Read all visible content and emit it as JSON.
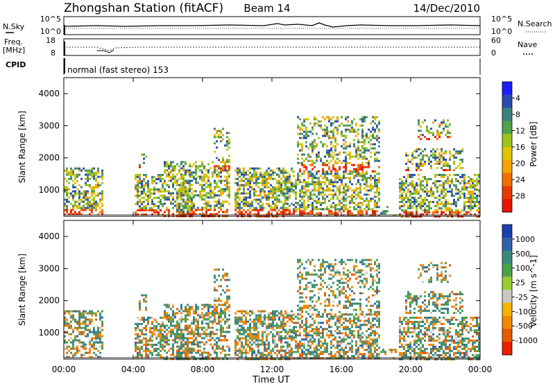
{
  "header": {
    "title": "Zhongshan Station (fitACF)",
    "beam": "Beam 14",
    "date": "14/Dec/2010"
  },
  "noise_panel": {
    "left_label": "N.Sky",
    "right_label": "N.Search",
    "left_ticks": [
      "10^5",
      "10^0"
    ],
    "right_ticks": [
      "10^5",
      "10^0"
    ]
  },
  "freq_panel": {
    "left_label_1": "Freq.",
    "left_label_2": "[MHz]",
    "right_label": "Nave",
    "left_ticks": [
      "18",
      "8"
    ],
    "right_ticks": [
      "60",
      "0"
    ]
  },
  "cpid_panel": {
    "label": "CPID",
    "mode": "normal (fast stereo) 153"
  },
  "chart_data": [
    {
      "type": "heatmap",
      "name": "power",
      "ylabel": "Slant Range [km]",
      "ylim": [
        180,
        4500
      ],
      "y_ticks": [
        "1000",
        "2000",
        "3000",
        "4000"
      ],
      "colorbar_label": "Power [dB]",
      "colorbar_ticks": [
        "4",
        "8",
        "12",
        "16",
        "20",
        "24",
        "28"
      ],
      "colorbar_colors": [
        "#1d1dff",
        "#2a4dad",
        "#3d7f7f",
        "#4ea34b",
        "#9cc51e",
        "#e2c400",
        "#f5a400",
        "#f07000",
        "#e83a00",
        "#e81500"
      ]
    },
    {
      "type": "heatmap",
      "name": "velocity",
      "ylabel": "Slant Range [km]",
      "ylim": [
        180,
        4500
      ],
      "y_ticks": [
        "1000",
        "2000",
        "3000",
        "4000"
      ],
      "colorbar_label": "Velocity [m s^-1]",
      "colorbar_ticks": [
        "1000",
        "500",
        "100",
        "25",
        "-25",
        "-100",
        "-500",
        "-1000"
      ],
      "colorbar_colors": [
        "#1d3fb0",
        "#2e63a8",
        "#3d8a7c",
        "#4aa34b",
        "#9acd32",
        "#c8c8c0",
        "#f5b400",
        "#f08800",
        "#e85a00",
        "#e82000"
      ]
    }
  ],
  "time_axis": {
    "label": "Time UT",
    "ticks": [
      "00:00",
      "04:00",
      "08:00",
      "12:00",
      "16:00",
      "20:00",
      "00:00"
    ]
  }
}
